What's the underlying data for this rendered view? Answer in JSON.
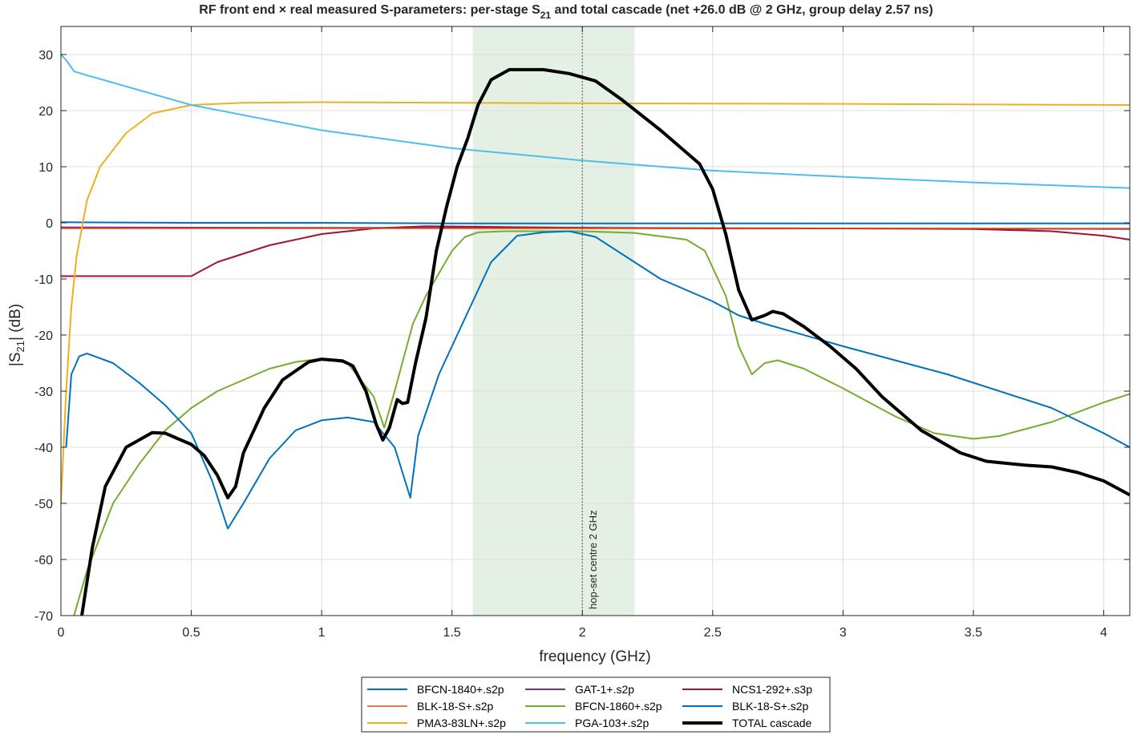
{
  "chart_data": {
    "type": "line",
    "title_main": "RF front end × real measured S-parameters: per-stage S",
    "title_sub": "21",
    "title_tail": " and total cascade   (net +26.0 dB @ 2 GHz, group delay 2.57 ns)",
    "xlabel": "frequency (GHz)",
    "ylabel_pre": "|S",
    "ylabel_sub": "21",
    "ylabel_post": "| (dB)",
    "xlim": [
      0,
      4.1
    ],
    "ylim": [
      -70,
      35
    ],
    "xticks": [
      0,
      0.5,
      1,
      1.5,
      2,
      2.5,
      3,
      3.5,
      4
    ],
    "xtick_labels": [
      "0",
      "0.5",
      "1",
      "1.5",
      "2",
      "2.5",
      "3",
      "3.5",
      "4"
    ],
    "yticks": [
      -70,
      -60,
      -50,
      -40,
      -30,
      -20,
      -10,
      0,
      10,
      20,
      30
    ],
    "ytick_labels": [
      "-70",
      "-60",
      "-50",
      "-40",
      "-30",
      "-20",
      "-10",
      "0",
      "10",
      "20",
      "30"
    ],
    "grid": true,
    "band": {
      "x0": 1.58,
      "x1": 2.2,
      "color": "#e3f0e3"
    },
    "marker": {
      "x": 2.0,
      "label": "hop-set centre 2 GHz"
    },
    "legend_position": "bottom-outside",
    "series": [
      {
        "name": "BFCN-1840+.s2p",
        "color": "#0072BD",
        "width": 2,
        "points": [
          [
            0,
            0.1
          ],
          [
            0.5,
            0
          ],
          [
            1,
            0
          ],
          [
            1.5,
            -0.1
          ],
          [
            2,
            -0.1
          ],
          [
            2.5,
            -0.1
          ],
          [
            3,
            -0.1
          ],
          [
            3.5,
            -0.1
          ],
          [
            4.1,
            -0.1
          ]
        ]
      },
      {
        "name": "GAT-1+.s2p",
        "color": "#7E2F8E",
        "width": 2,
        "points": [
          [
            0,
            -0.8
          ],
          [
            1,
            -0.9
          ],
          [
            2,
            -0.9
          ],
          [
            3,
            -1.0
          ],
          [
            4.1,
            -1.1
          ]
        ]
      },
      {
        "name": "NCS1-292+.s3p",
        "color": "#A2142F",
        "width": 2,
        "points": [
          [
            0,
            -9.5
          ],
          [
            0.5,
            -9.5
          ],
          [
            0.6,
            -7
          ],
          [
            0.8,
            -4
          ],
          [
            1,
            -2
          ],
          [
            1.2,
            -1
          ],
          [
            1.4,
            -0.6
          ],
          [
            1.6,
            -0.7
          ],
          [
            2,
            -0.9
          ],
          [
            2.5,
            -1.0
          ],
          [
            3,
            -1.0
          ],
          [
            3.5,
            -1.1
          ],
          [
            3.8,
            -1.5
          ],
          [
            4.0,
            -2.3
          ],
          [
            4.1,
            -3
          ]
        ]
      },
      {
        "name": "BLK-18-S+.s2p",
        "color": "#D95319",
        "width": 1.5,
        "points": [
          [
            0,
            -1
          ],
          [
            1,
            -1
          ],
          [
            2,
            -1
          ],
          [
            3,
            -1
          ],
          [
            4.1,
            -1
          ]
        ]
      },
      {
        "name": "BFCN-1860+.s2p",
        "color": "#77AC30",
        "width": 2,
        "points": [
          [
            0.05,
            -70
          ],
          [
            0.1,
            -62
          ],
          [
            0.2,
            -50
          ],
          [
            0.3,
            -43
          ],
          [
            0.4,
            -37
          ],
          [
            0.5,
            -33
          ],
          [
            0.6,
            -30
          ],
          [
            0.7,
            -28
          ],
          [
            0.8,
            -26
          ],
          [
            0.9,
            -24.8
          ],
          [
            1.0,
            -24.2
          ],
          [
            1.1,
            -25
          ],
          [
            1.2,
            -31
          ],
          [
            1.24,
            -36.5
          ],
          [
            1.28,
            -30
          ],
          [
            1.35,
            -18
          ],
          [
            1.4,
            -13
          ],
          [
            1.45,
            -9
          ],
          [
            1.5,
            -5
          ],
          [
            1.55,
            -2.5
          ],
          [
            1.6,
            -1.7
          ],
          [
            1.7,
            -1.5
          ],
          [
            2.0,
            -1.5
          ],
          [
            2.2,
            -1.8
          ],
          [
            2.4,
            -3
          ],
          [
            2.47,
            -5
          ],
          [
            2.55,
            -13
          ],
          [
            2.6,
            -22
          ],
          [
            2.65,
            -27
          ],
          [
            2.7,
            -25
          ],
          [
            2.75,
            -24.5
          ],
          [
            2.85,
            -26
          ],
          [
            3.0,
            -29.5
          ],
          [
            3.2,
            -34.5
          ],
          [
            3.35,
            -37.5
          ],
          [
            3.5,
            -38.5
          ],
          [
            3.6,
            -38
          ],
          [
            3.8,
            -35.5
          ],
          [
            4.0,
            -32
          ],
          [
            4.1,
            -30.5
          ]
        ]
      },
      {
        "name": "BLK-18-S+.s2p",
        "color": "#0072BD",
        "width": 2,
        "points": [
          [
            0.02,
            -40
          ],
          [
            0.04,
            -27
          ],
          [
            0.07,
            -23.8
          ],
          [
            0.1,
            -23.3
          ],
          [
            0.2,
            -25
          ],
          [
            0.3,
            -28.5
          ],
          [
            0.4,
            -32.5
          ],
          [
            0.5,
            -37.5
          ],
          [
            0.58,
            -46
          ],
          [
            0.64,
            -54.5
          ],
          [
            0.7,
            -50
          ],
          [
            0.8,
            -42
          ],
          [
            0.9,
            -37
          ],
          [
            1.0,
            -35.2
          ],
          [
            1.1,
            -34.7
          ],
          [
            1.2,
            -35.5
          ],
          [
            1.28,
            -40
          ],
          [
            1.32,
            -46
          ],
          [
            1.34,
            -49
          ],
          [
            1.37,
            -38
          ],
          [
            1.45,
            -27
          ],
          [
            1.55,
            -17
          ],
          [
            1.65,
            -7
          ],
          [
            1.75,
            -2.3
          ],
          [
            1.85,
            -1.7
          ],
          [
            1.95,
            -1.5
          ],
          [
            2.05,
            -2.5
          ],
          [
            2.15,
            -5.5
          ],
          [
            2.3,
            -10
          ],
          [
            2.5,
            -14
          ],
          [
            2.6,
            -16.5
          ],
          [
            2.7,
            -18
          ],
          [
            3.0,
            -22
          ],
          [
            3.4,
            -27
          ],
          [
            3.8,
            -33
          ],
          [
            4.0,
            -37.5
          ],
          [
            4.1,
            -40
          ]
        ]
      },
      {
        "name": "PMA3-83LN+.s2p",
        "color": "#EDB120",
        "width": 2,
        "points": [
          [
            0,
            -50
          ],
          [
            0.02,
            -30
          ],
          [
            0.04,
            -15
          ],
          [
            0.06,
            -6
          ],
          [
            0.1,
            4
          ],
          [
            0.15,
            10
          ],
          [
            0.25,
            16
          ],
          [
            0.35,
            19.5
          ],
          [
            0.5,
            21
          ],
          [
            0.7,
            21.4
          ],
          [
            1.0,
            21.5
          ],
          [
            2.0,
            21.3
          ],
          [
            3.0,
            21.2
          ],
          [
            4.1,
            21.0
          ]
        ]
      },
      {
        "name": "PGA-103+.s2p",
        "color": "#4DBEEE",
        "width": 2,
        "points": [
          [
            0,
            30
          ],
          [
            0.02,
            29
          ],
          [
            0.05,
            27
          ],
          [
            0.1,
            26.3
          ],
          [
            0.5,
            21
          ],
          [
            1.0,
            16.5
          ],
          [
            1.5,
            13.3
          ],
          [
            2.0,
            11.1
          ],
          [
            2.5,
            9.3
          ],
          [
            3.0,
            8.2
          ],
          [
            3.5,
            7.2
          ],
          [
            4.1,
            6.2
          ]
        ]
      },
      {
        "name": "TOTAL cascade",
        "color": "#000000",
        "width": 4,
        "points": [
          [
            0.08,
            -70
          ],
          [
            0.12,
            -58
          ],
          [
            0.17,
            -47
          ],
          [
            0.25,
            -40
          ],
          [
            0.35,
            -37.4
          ],
          [
            0.4,
            -37.5
          ],
          [
            0.5,
            -39.5
          ],
          [
            0.55,
            -41.5
          ],
          [
            0.6,
            -45
          ],
          [
            0.64,
            -49
          ],
          [
            0.67,
            -47
          ],
          [
            0.7,
            -41
          ],
          [
            0.78,
            -33
          ],
          [
            0.85,
            -28
          ],
          [
            0.95,
            -24.8
          ],
          [
            1.0,
            -24.3
          ],
          [
            1.08,
            -24.6
          ],
          [
            1.12,
            -25.5
          ],
          [
            1.17,
            -30
          ],
          [
            1.21,
            -36
          ],
          [
            1.235,
            -38.7
          ],
          [
            1.26,
            -36.5
          ],
          [
            1.29,
            -31.5
          ],
          [
            1.31,
            -32.2
          ],
          [
            1.33,
            -32
          ],
          [
            1.36,
            -25
          ],
          [
            1.4,
            -17
          ],
          [
            1.44,
            -5
          ],
          [
            1.48,
            3
          ],
          [
            1.52,
            10
          ],
          [
            1.56,
            15
          ],
          [
            1.6,
            21
          ],
          [
            1.65,
            25.5
          ],
          [
            1.72,
            27.3
          ],
          [
            1.85,
            27.3
          ],
          [
            1.95,
            26.6
          ],
          [
            2.05,
            25.3
          ],
          [
            2.15,
            22
          ],
          [
            2.3,
            16.5
          ],
          [
            2.45,
            10.5
          ],
          [
            2.5,
            6
          ],
          [
            2.55,
            -2
          ],
          [
            2.6,
            -12
          ],
          [
            2.65,
            -17.3
          ],
          [
            2.7,
            -16.5
          ],
          [
            2.73,
            -15.8
          ],
          [
            2.77,
            -16.2
          ],
          [
            2.85,
            -18.5
          ],
          [
            2.95,
            -22
          ],
          [
            3.05,
            -26
          ],
          [
            3.15,
            -31
          ],
          [
            3.3,
            -37
          ],
          [
            3.45,
            -41
          ],
          [
            3.55,
            -42.5
          ],
          [
            3.7,
            -43.2
          ],
          [
            3.8,
            -43.5
          ],
          [
            3.9,
            -44.5
          ],
          [
            4.0,
            -46
          ],
          [
            4.1,
            -48.5
          ]
        ]
      }
    ]
  }
}
